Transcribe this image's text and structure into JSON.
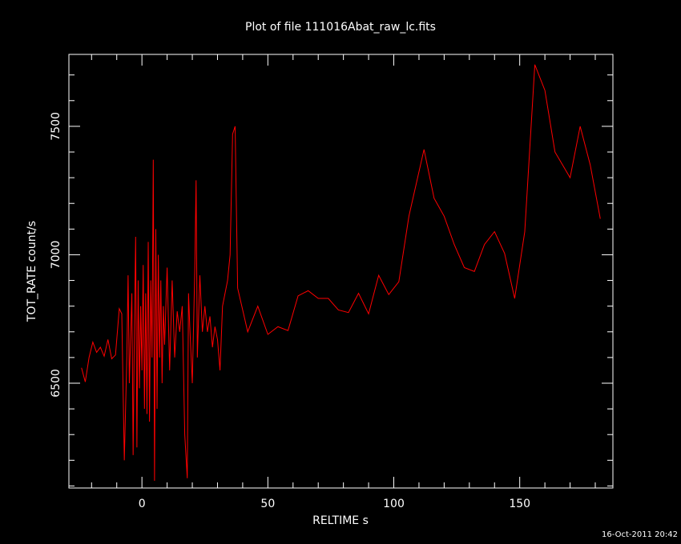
{
  "chart_data": {
    "type": "line",
    "title": "Plot of file 111016Abat_raw_lc.fits",
    "xlabel": "RELTIME  s",
    "ylabel": "TOT_RATE  count/s",
    "footer": "16-Oct-2011 20:42",
    "color": "#ff0000",
    "x": [
      -24,
      -22.5,
      -21,
      -19.5,
      -18,
      -16.5,
      -15,
      -13.5,
      -12,
      -10.5,
      -9,
      -8,
      -7,
      -6,
      -5.5,
      -5,
      -4,
      -3.5,
      -3,
      -2.5,
      -2,
      -1.5,
      -1,
      -0.5,
      0,
      0.5,
      1,
      1.5,
      2,
      2.5,
      3,
      3.5,
      4,
      4.5,
      5,
      5.5,
      6,
      6.5,
      7,
      7.5,
      8,
      8.5,
      9,
      10,
      11,
      12,
      13,
      14,
      15,
      16,
      17,
      18,
      18.5,
      19,
      20,
      21,
      21.5,
      22,
      23,
      24,
      25,
      26,
      27,
      28,
      29,
      30,
      31,
      32,
      34,
      35,
      36,
      37,
      38,
      42,
      46,
      50,
      54,
      58,
      62,
      66,
      70,
      74,
      78,
      82,
      86,
      90,
      94,
      98,
      102,
      106,
      112,
      116,
      120,
      124,
      128,
      132,
      136,
      140,
      144,
      148,
      152,
      156,
      160,
      164,
      170,
      174,
      178,
      182
    ],
    "values": [
      6560,
      6505,
      6600,
      6660,
      6620,
      6640,
      6605,
      6670,
      6595,
      6610,
      6790,
      6770,
      6200,
      6600,
      6920,
      6500,
      6850,
      6220,
      6700,
      7070,
      6250,
      6900,
      6480,
      6800,
      6550,
      6960,
      6400,
      6850,
      6380,
      7050,
      6350,
      6900,
      6600,
      7370,
      6120,
      7100,
      6400,
      7000,
      6600,
      6900,
      6500,
      6800,
      6650,
      6950,
      6550,
      6900,
      6600,
      6780,
      6700,
      6800,
      6300,
      6130,
      6850,
      6720,
      6500,
      6950,
      7290,
      6600,
      6920,
      6700,
      6800,
      6700,
      6760,
      6640,
      6720,
      6670,
      6550,
      6800,
      6900,
      7000,
      7470,
      7500,
      6870,
      6700,
      6800,
      6690,
      6720,
      6705,
      6840,
      6860,
      6830,
      6830,
      6785,
      6775,
      6850,
      6770,
      6920,
      6845,
      6895,
      7150,
      7410,
      7220,
      7150,
      7040,
      6950,
      6935,
      7040,
      7090,
      7005,
      6830,
      7090,
      7740,
      7640,
      7400,
      7300,
      7500,
      7350,
      7140
    ],
    "xlim": [
      -29,
      187
    ],
    "ylim": [
      6092,
      7780
    ],
    "xticks": [
      0,
      50,
      100,
      150
    ],
    "yticks": [
      6500,
      7000,
      7500
    ],
    "xminorticks": [
      -20,
      -10,
      10,
      20,
      30,
      40,
      60,
      70,
      80,
      90,
      110,
      120,
      130,
      140,
      160,
      170,
      180
    ],
    "yminorticks": [
      6100,
      6200,
      6300,
      6400,
      6600,
      6700,
      6800,
      6900,
      7100,
      7200,
      7300,
      7400,
      7600,
      7700
    ]
  }
}
